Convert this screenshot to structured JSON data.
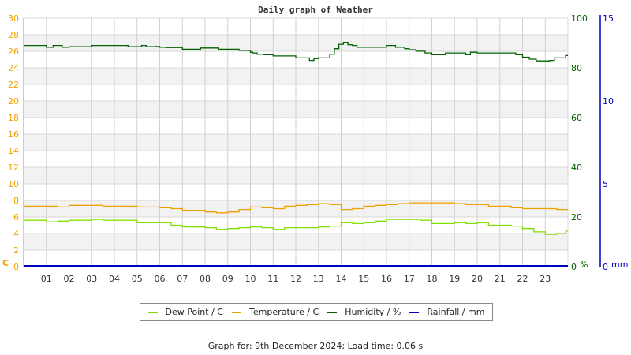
{
  "chart_data": {
    "type": "line",
    "title": "Daily graph of Weather",
    "xlabel": "",
    "ylabel_left": "C",
    "ylabel_right_humidity": "%",
    "ylabel_right_rain": "mm",
    "x_ticks": [
      "01",
      "02",
      "03",
      "04",
      "05",
      "06",
      "07",
      "08",
      "09",
      "10",
      "11",
      "12",
      "13",
      "14",
      "15",
      "16",
      "17",
      "18",
      "19",
      "20",
      "21",
      "22",
      "23"
    ],
    "x_range_hours": [
      0,
      24
    ],
    "left_axis": {
      "label": "C",
      "ylim": [
        0,
        30
      ],
      "ticks": [
        0,
        2,
        4,
        6,
        8,
        10,
        12,
        14,
        16,
        18,
        20,
        22,
        24,
        26,
        28,
        30
      ],
      "color": "#f0a000"
    },
    "humidity_axis": {
      "label": "%",
      "ylim": [
        0,
        100
      ],
      "ticks": [
        0,
        20,
        40,
        60,
        80,
        100
      ],
      "color": "#006000"
    },
    "rain_axis": {
      "label": "mm",
      "ylim": [
        0,
        15
      ],
      "ticks": [
        0,
        5,
        10,
        15
      ],
      "color": "#0000c0"
    },
    "grid": true,
    "legend_position": "bottom",
    "series": [
      {
        "name": "Dew Point / C",
        "color": "#80e000",
        "axis": "left",
        "x": [
          0,
          0.5,
          1,
          1.5,
          2,
          2.5,
          3,
          3.5,
          4,
          4.5,
          5,
          5.5,
          6,
          6.5,
          7,
          7.5,
          8,
          8.5,
          9,
          9.5,
          10,
          10.5,
          11,
          11.5,
          12,
          12.5,
          13,
          13.5,
          14,
          14.5,
          15,
          15.5,
          16,
          16.5,
          17,
          17.5,
          18,
          18.5,
          19,
          19.5,
          20,
          20.5,
          21,
          21.5,
          22,
          22.5,
          23,
          23.5,
          23.9
        ],
        "values": [
          5.6,
          5.6,
          5.4,
          5.5,
          5.6,
          5.6,
          5.7,
          5.6,
          5.6,
          5.6,
          5.3,
          5.3,
          5.3,
          5.0,
          4.8,
          4.8,
          4.7,
          4.5,
          4.6,
          4.7,
          4.8,
          4.7,
          4.5,
          4.7,
          4.7,
          4.7,
          4.8,
          4.9,
          5.3,
          5.2,
          5.3,
          5.5,
          5.7,
          5.7,
          5.7,
          5.6,
          5.2,
          5.2,
          5.3,
          5.2,
          5.3,
          5.0,
          5.0,
          4.9,
          4.6,
          4.2,
          3.9,
          4.0,
          4.3
        ]
      },
      {
        "name": "Temperature / C",
        "color": "#f0a000",
        "axis": "left",
        "x": [
          0,
          0.5,
          1,
          1.5,
          2,
          2.5,
          3,
          3.5,
          4,
          4.5,
          5,
          5.5,
          6,
          6.5,
          7,
          7.5,
          8,
          8.5,
          9,
          9.5,
          10,
          10.5,
          11,
          11.5,
          12,
          12.5,
          13,
          13.5,
          14,
          14.5,
          15,
          15.5,
          16,
          16.5,
          17,
          17.5,
          18,
          18.5,
          19,
          19.5,
          20,
          20.5,
          21,
          21.5,
          22,
          22.5,
          23,
          23.5,
          23.9
        ],
        "values": [
          7.3,
          7.3,
          7.3,
          7.2,
          7.4,
          7.4,
          7.4,
          7.3,
          7.3,
          7.3,
          7.2,
          7.2,
          7.1,
          7.0,
          6.8,
          6.8,
          6.6,
          6.5,
          6.6,
          6.9,
          7.2,
          7.1,
          7.0,
          7.3,
          7.4,
          7.5,
          7.6,
          7.5,
          6.9,
          7.0,
          7.3,
          7.4,
          7.5,
          7.6,
          7.7,
          7.7,
          7.7,
          7.7,
          7.6,
          7.5,
          7.5,
          7.3,
          7.3,
          7.1,
          7.0,
          7.0,
          7.0,
          6.9,
          6.9
        ]
      },
      {
        "name": "Humidity / %",
        "color": "#006000",
        "axis": "humidity",
        "x": [
          0,
          0.8,
          1,
          1.3,
          1.7,
          2,
          2.3,
          3,
          4,
          4.6,
          4.8,
          5.2,
          5.4,
          5.8,
          6,
          6.3,
          7,
          7.3,
          7.8,
          8,
          8.6,
          9,
          9.5,
          10,
          10.1,
          10.3,
          10.6,
          11,
          11.5,
          12,
          12.3,
          12.6,
          12.8,
          13,
          13.2,
          13.5,
          13.7,
          13.9,
          14.1,
          14.3,
          14.5,
          14.7,
          15,
          15.5,
          16,
          16.4,
          16.8,
          17,
          17.3,
          17.7,
          18,
          18.3,
          18.6,
          19,
          19.2,
          19.5,
          19.7,
          20,
          20.5,
          21,
          21.5,
          21.7,
          22,
          22.3,
          22.6,
          22.9,
          23.2,
          23.4,
          23.9
        ],
        "values": [
          89,
          89,
          88.3,
          89,
          88.3,
          88.5,
          88.5,
          89,
          89,
          88.5,
          88.5,
          89,
          88.5,
          88.6,
          88.3,
          88.2,
          87.5,
          87.5,
          88,
          88,
          87.5,
          87.5,
          87,
          86.3,
          86,
          85.5,
          85.3,
          84.8,
          84.8,
          84,
          84,
          83,
          83.7,
          84,
          84,
          85.5,
          87.7,
          89.5,
          90.3,
          89.3,
          89,
          88.3,
          88.3,
          88.3,
          89,
          88.3,
          87.7,
          87.3,
          86.7,
          86,
          85.3,
          85.3,
          86,
          86,
          86,
          85.3,
          86.3,
          86,
          86,
          86,
          86,
          85.3,
          84.3,
          83.5,
          82.8,
          82.8,
          83,
          84,
          85
        ]
      },
      {
        "name": "Rainfall / mm",
        "color": "#0000c0",
        "axis": "rain",
        "x": [
          0,
          24
        ],
        "values": [
          0,
          0
        ]
      }
    ]
  },
  "legend": {
    "items": [
      {
        "label": "Dew Point / C",
        "color": "#80e000"
      },
      {
        "label": "Temperature / C",
        "color": "#f0a000"
      },
      {
        "label": "Humidity / %",
        "color": "#006000"
      },
      {
        "label": "Rainfall / mm",
        "color": "#0000c0"
      }
    ]
  },
  "footer": {
    "text": "Graph for: 9th December 2024; Load time: 0.06 s"
  }
}
